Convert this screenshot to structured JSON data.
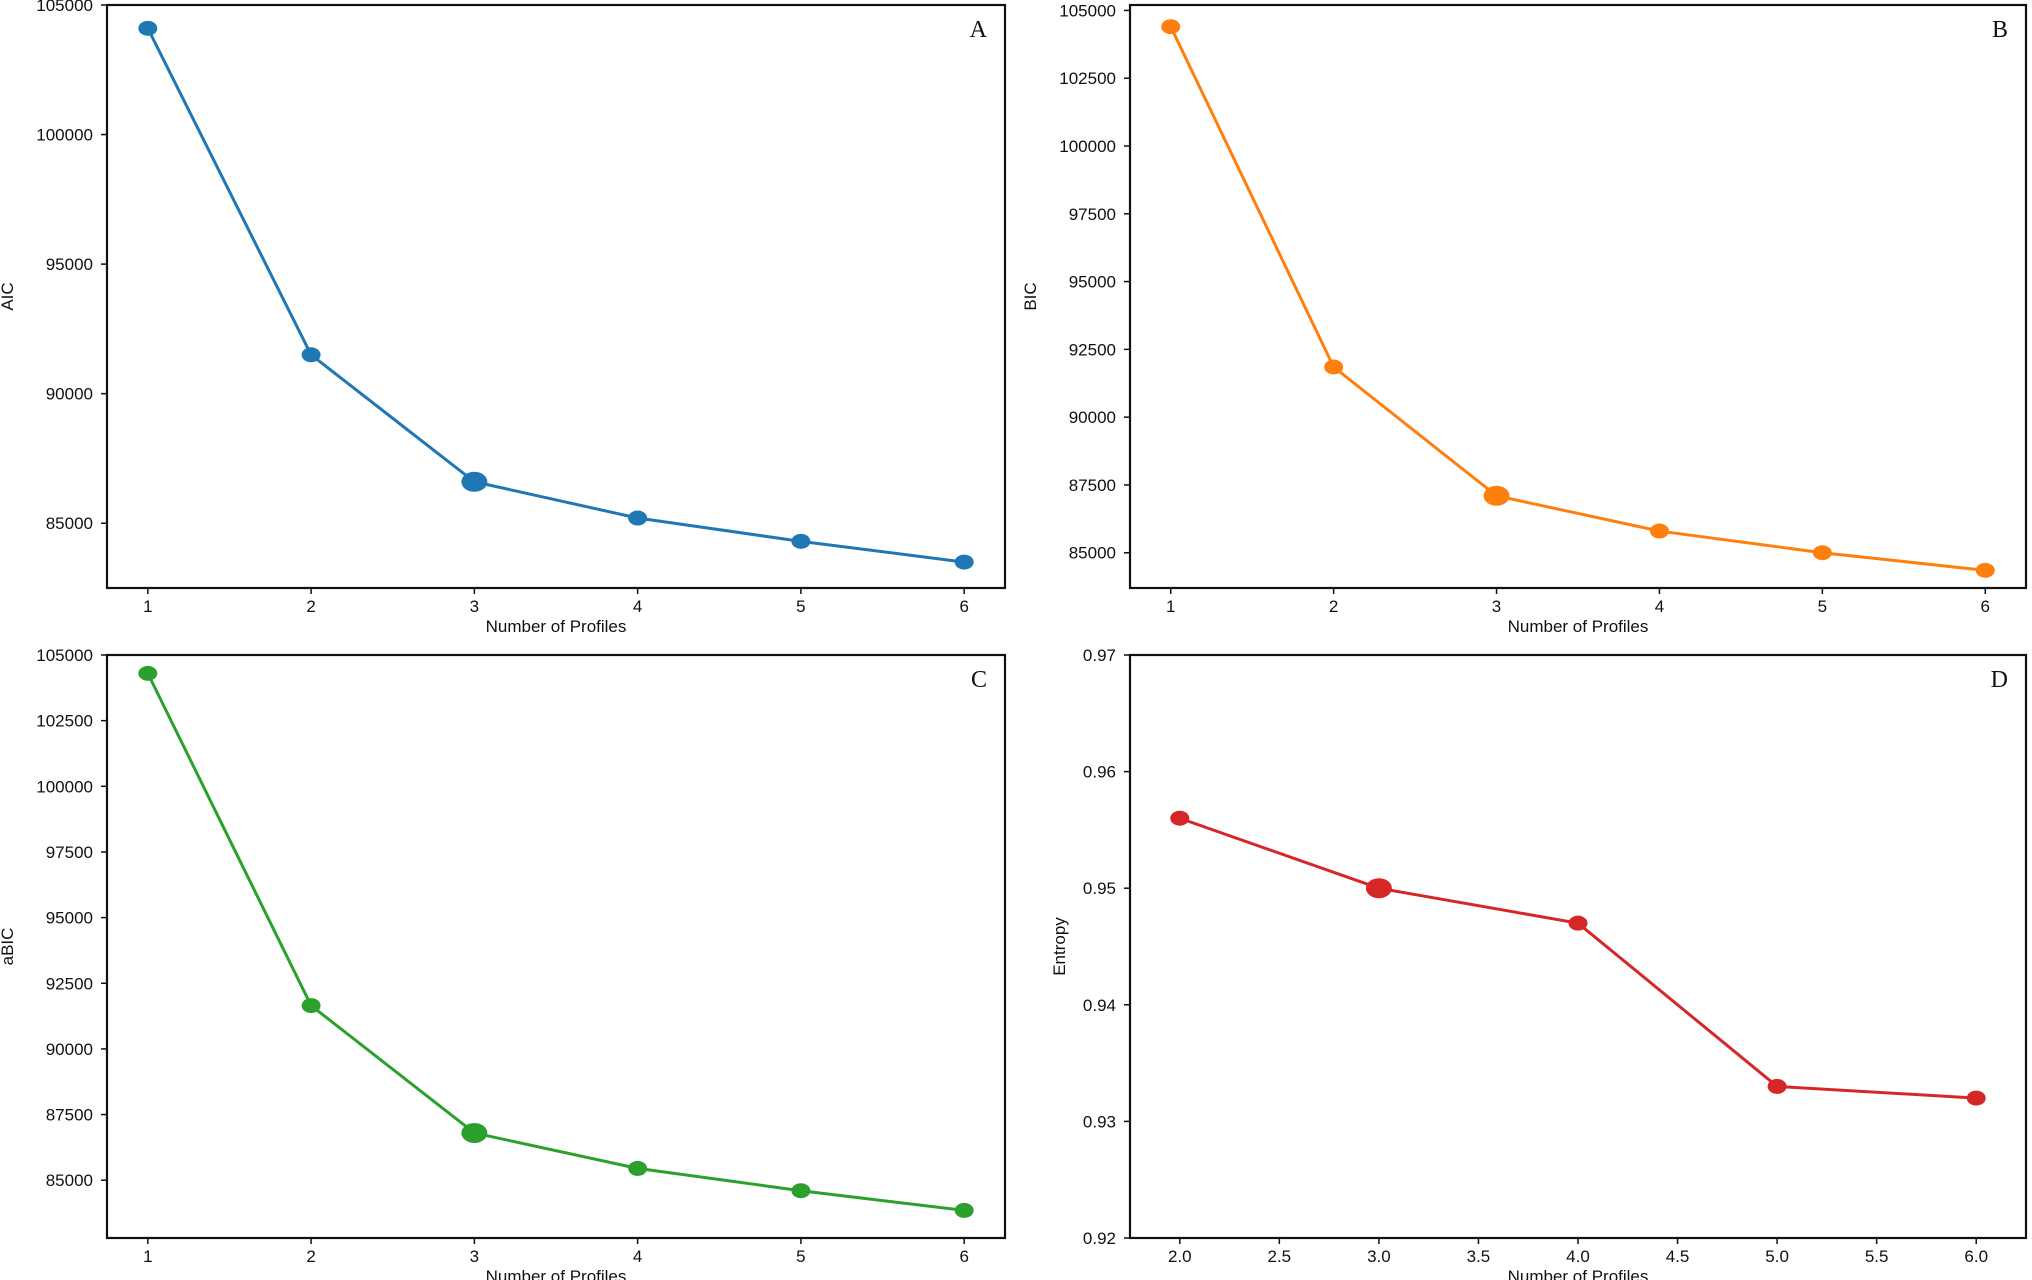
{
  "chart_data": [
    {
      "type": "line",
      "panel": "A",
      "color": "#1f77b4",
      "xlabel": "Number of Profiles",
      "ylabel": "AIC",
      "x": [
        1,
        2,
        3,
        4,
        5,
        6
      ],
      "values": [
        104100,
        91500,
        86600,
        85200,
        84300,
        83500
      ],
      "highlight_index": 2,
      "xlim": [
        0.75,
        6.25
      ],
      "ylim": [
        82500,
        105000
      ],
      "xticks": [
        "1",
        "2",
        "3",
        "4",
        "5",
        "6"
      ],
      "yticks": [
        85000,
        90000,
        95000,
        100000,
        105000
      ],
      "ytick_labels": [
        "85000",
        "90000",
        "95000",
        "100000",
        "105000"
      ]
    },
    {
      "type": "line",
      "panel": "B",
      "color": "#ff7f0e",
      "xlabel": "Number of Profiles",
      "ylabel": "BIC",
      "x": [
        1,
        2,
        3,
        4,
        5,
        6
      ],
      "values": [
        104400,
        91850,
        87100,
        85800,
        85000,
        84350
      ],
      "highlight_index": 2,
      "xlim": [
        0.75,
        6.25
      ],
      "ylim": [
        83700,
        105200
      ],
      "xticks": [
        "1",
        "2",
        "3",
        "4",
        "5",
        "6"
      ],
      "yticks": [
        85000,
        87500,
        90000,
        92500,
        95000,
        97500,
        100000,
        102500,
        105000
      ],
      "ytick_labels": [
        "85000",
        "87500",
        "90000",
        "92500",
        "95000",
        "97500",
        "100000",
        "102500",
        "105000"
      ]
    },
    {
      "type": "line",
      "panel": "C",
      "color": "#2ca02c",
      "xlabel": "Number of Profiles",
      "ylabel": "aBIC",
      "x": [
        1,
        2,
        3,
        4,
        5,
        6
      ],
      "values": [
        104300,
        91650,
        86800,
        85450,
        84600,
        83850
      ],
      "highlight_index": 2,
      "xlim": [
        0.75,
        6.25
      ],
      "ylim": [
        82800,
        105000
      ],
      "xticks": [
        "1",
        "2",
        "3",
        "4",
        "5",
        "6"
      ],
      "yticks": [
        85000,
        87500,
        90000,
        92500,
        95000,
        97500,
        100000,
        102500,
        105000
      ],
      "ytick_labels": [
        "85000",
        "87500",
        "90000",
        "92500",
        "95000",
        "97500",
        "100000",
        "102500",
        "105000"
      ]
    },
    {
      "type": "line",
      "panel": "D",
      "color": "#d62728",
      "xlabel": "Number of Profiles",
      "ylabel": "Entropy",
      "x": [
        2.0,
        3.0,
        4.0,
        5.0,
        6.0
      ],
      "values": [
        0.956,
        0.95,
        0.947,
        0.933,
        0.932
      ],
      "highlight_index": 1,
      "xlim": [
        1.75,
        6.25
      ],
      "ylim": [
        0.92,
        0.97
      ],
      "xticks": [
        "2.0",
        "2.5",
        "3.0",
        "3.5",
        "4.0",
        "4.5",
        "5.0",
        "5.5",
        "6.0"
      ],
      "xtick_values": [
        2.0,
        2.5,
        3.0,
        3.5,
        4.0,
        4.5,
        5.0,
        5.5,
        6.0
      ],
      "yticks": [
        0.92,
        0.93,
        0.94,
        0.95,
        0.96,
        0.97
      ],
      "ytick_labels": [
        "0.92",
        "0.93",
        "0.94",
        "0.95",
        "0.96",
        "0.97"
      ]
    }
  ]
}
